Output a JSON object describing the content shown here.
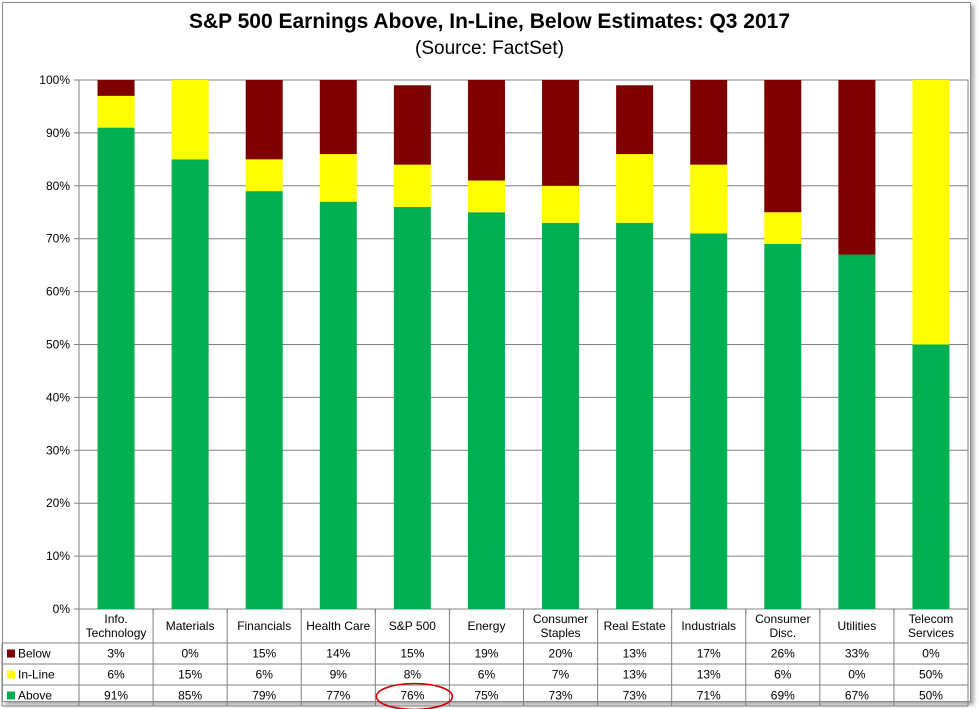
{
  "chart_data": {
    "type": "bar",
    "stacked": true,
    "title": "S&P 500 Earnings Above, In-Line, Below Estimates: Q3 2017",
    "subtitle": "(Source: FactSet)",
    "ylim": [
      0,
      100
    ],
    "yticks": [
      "0%",
      "10%",
      "20%",
      "30%",
      "40%",
      "50%",
      "60%",
      "70%",
      "80%",
      "90%",
      "100%"
    ],
    "grid": true,
    "legend": "data-table",
    "categories": [
      [
        "Info.",
        "Technology"
      ],
      [
        "Materials"
      ],
      [
        "Financials"
      ],
      [
        "Health Care"
      ],
      [
        "S&P 500"
      ],
      [
        "Energy"
      ],
      [
        "Consumer",
        "Staples"
      ],
      [
        "Real Estate"
      ],
      [
        "Industrials"
      ],
      [
        "Consumer",
        "Disc."
      ],
      [
        "Utilities"
      ],
      [
        "Telecom",
        "Services"
      ]
    ],
    "series": [
      {
        "name": "Below",
        "color": "#7f0000",
        "values": [
          3,
          0,
          15,
          14,
          15,
          19,
          20,
          13,
          17,
          26,
          33,
          0
        ],
        "labels": [
          "3%",
          "0%",
          "15%",
          "14%",
          "15%",
          "19%",
          "20%",
          "13%",
          "17%",
          "26%",
          "33%",
          "0%"
        ]
      },
      {
        "name": "In-Line",
        "color": "#ffff00",
        "values": [
          6,
          15,
          6,
          9,
          8,
          6,
          7,
          13,
          13,
          6,
          0,
          50
        ],
        "labels": [
          "6%",
          "15%",
          "6%",
          "9%",
          "8%",
          "6%",
          "7%",
          "13%",
          "13%",
          "6%",
          "0%",
          "50%"
        ]
      },
      {
        "name": "Above",
        "color": "#00b050",
        "values": [
          91,
          85,
          79,
          77,
          76,
          75,
          73,
          73,
          71,
          69,
          67,
          50
        ],
        "labels": [
          "91%",
          "85%",
          "79%",
          "77%",
          "76%",
          "75%",
          "73%",
          "73%",
          "71%",
          "69%",
          "67%",
          "50%"
        ]
      }
    ],
    "highlight": {
      "series": "Above",
      "category": "S&P 500",
      "color": "#d00000"
    }
  }
}
